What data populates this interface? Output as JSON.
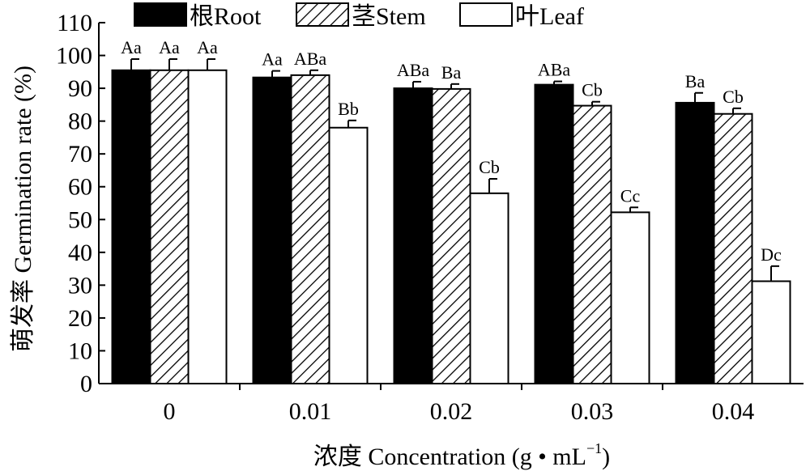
{
  "chart_data": {
    "type": "bar",
    "xlabel": "浓度 Concentration (g • mL",
    "xlabel_superscript": "−1",
    "xlabel_close": ")",
    "ylabel": "萌发率 Germination rate (%)",
    "categories": [
      "0",
      "0.01",
      "0.02",
      "0.03",
      "0.04"
    ],
    "ylim": [
      0,
      110
    ],
    "yticks": [
      0,
      10,
      20,
      30,
      40,
      50,
      60,
      70,
      80,
      90,
      100,
      110
    ],
    "grid": false,
    "legend_position": "top",
    "series": [
      {
        "name": "根Root",
        "fill": "solid-black",
        "values": [
          95.5,
          93.3,
          90.0,
          91.1,
          85.6
        ],
        "errors": [
          3.4,
          2.0,
          2.0,
          1.0,
          3.0
        ],
        "labels": [
          "Aa",
          "Aa",
          "ABa",
          "ABa",
          "Ba"
        ]
      },
      {
        "name": "茎Stem",
        "fill": "diagonal-hatch",
        "values": [
          95.5,
          94.0,
          89.8,
          84.7,
          82.2
        ],
        "errors": [
          3.4,
          1.5,
          1.5,
          1.2,
          1.7
        ],
        "labels": [
          "Aa",
          "ABa",
          "Ba",
          "Cb",
          "Cb"
        ]
      },
      {
        "name": "叶Leaf",
        "fill": "white",
        "values": [
          95.5,
          78.0,
          58.0,
          52.2,
          31.2
        ],
        "errors": [
          3.4,
          2.2,
          4.4,
          1.5,
          4.6
        ],
        "labels": [
          "Aa",
          "Bb",
          "Cb",
          "Cc",
          "Dc"
        ]
      }
    ],
    "colors": {
      "bar_stroke": "#000000",
      "root_fill": "#000000",
      "leaf_fill": "#ffffff",
      "background": "#ffffff"
    }
  }
}
